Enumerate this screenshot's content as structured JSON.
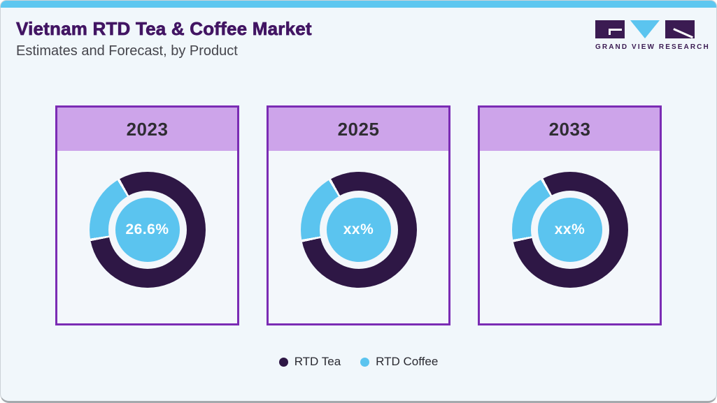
{
  "page": {
    "title": "Vietnam RTD Tea & Coffee Market",
    "subtitle": "Estimates and Forecast, by Product"
  },
  "logo": {
    "wordmark": "GRAND VIEW RESEARCH"
  },
  "colors": {
    "topbar": "#5ec7f0",
    "title_purple": "#421563",
    "card_border": "#7b2cb4",
    "card_header_bg": "#cda4ea",
    "ring_dark": "#2e1745",
    "sky_blue": "#5bc4ef",
    "segment_gap": "#ffffff"
  },
  "chart_data": {
    "type": "donut",
    "title": "Vietnam RTD Tea & Coffee Market",
    "subtitle": "Estimates and Forecast, by Product",
    "legend": [
      {
        "label": "RTD Tea",
        "color": "#2e1745"
      },
      {
        "label": "RTD Coffee",
        "color": "#5bc4ef"
      }
    ],
    "donuts": [
      {
        "year": "2023",
        "center_label": "26.6%",
        "segments": [
          {
            "name": "RTD Tea",
            "value": "73.4%"
          },
          {
            "name": "RTD Coffee",
            "value": "26.6%"
          }
        ],
        "arc": {
          "coffee_start_deg": 260,
          "coffee_end_deg": 330,
          "gap_deg": 2.6
        }
      },
      {
        "year": "2025",
        "center_label": "xx%",
        "segments": [
          {
            "name": "RTD Tea",
            "value": "xx%"
          },
          {
            "name": "RTD Coffee",
            "value": "xx%"
          }
        ],
        "arc": {
          "coffee_start_deg": 259,
          "coffee_end_deg": 330,
          "gap_deg": 2.6
        }
      },
      {
        "year": "2033",
        "center_label": "xx%",
        "segments": [
          {
            "name": "RTD Tea",
            "value": "xx%"
          },
          {
            "name": "RTD Coffee",
            "value": "xx%"
          }
        ],
        "arc": {
          "coffee_start_deg": 259,
          "coffee_end_deg": 331,
          "gap_deg": 2.6
        }
      }
    ]
  }
}
